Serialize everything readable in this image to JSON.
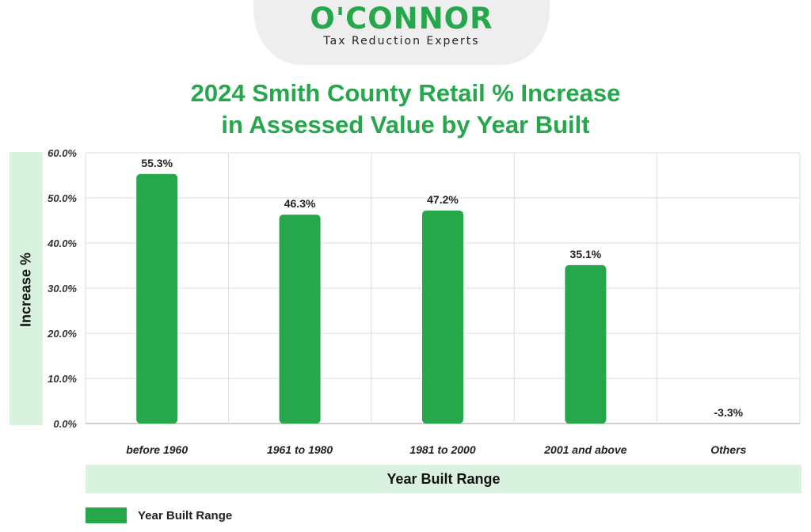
{
  "logo": {
    "name": "O'CONNOR",
    "tagline": "Tax Reduction Experts"
  },
  "title_line1": "2024 Smith County Retail % Increase",
  "title_line2": "in Assessed Value by Year Built",
  "colors": {
    "bar": "#26a74b",
    "title": "#26a74b",
    "band": "#d9f2e0",
    "grid": "#dddddd"
  },
  "chart_data": {
    "type": "bar",
    "title": "2024 Smith County Retail % Increase in Assessed Value by Year Built",
    "xlabel": "Year Built Range",
    "ylabel": "Increase %",
    "categories": [
      "before 1960",
      "1961 to 1980",
      "1981 to 2000",
      "2001 and above",
      "Others"
    ],
    "series": [
      {
        "name": "Year Built Range",
        "values": [
          55.3,
          46.3,
          47.2,
          35.1,
          -3.3
        ]
      }
    ],
    "data_labels": [
      "55.3%",
      "46.3%",
      "47.2%",
      "35.1%",
      "-3.3%"
    ],
    "ylim": [
      0,
      60
    ],
    "yticks": [
      0,
      10,
      20,
      30,
      40,
      50,
      60
    ],
    "ytick_labels": [
      "0.0%",
      "10.0%",
      "20.0%",
      "30.0%",
      "40.0%",
      "50.0%",
      "60.0%"
    ],
    "grid": true,
    "legend": "bottom-left"
  }
}
